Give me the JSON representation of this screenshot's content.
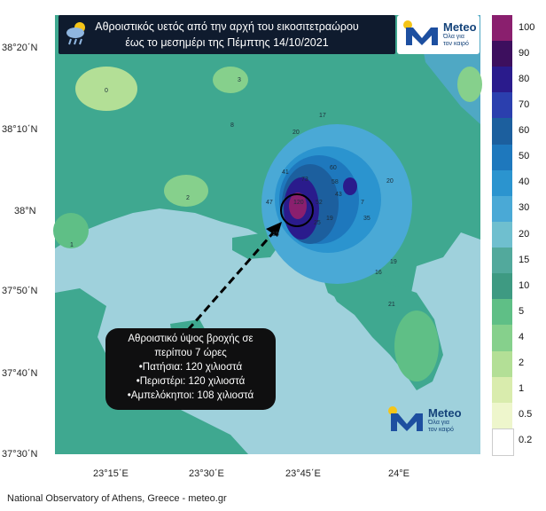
{
  "title": {
    "line1": "Αθροιστικός υετός από την αρχή του εικοσιτετραώρου",
    "line2": "έως το μεσημέρι της Πέμπτης 14/10/2021"
  },
  "logo": {
    "name": "Meteo",
    "tagline_line1": "Όλα για",
    "tagline_line2": "τον καιρό"
  },
  "legend": {
    "labels": [
      "100",
      "90",
      "80",
      "70",
      "60",
      "50",
      "40",
      "30",
      "20",
      "15",
      "10",
      "5",
      "4",
      "2",
      "1",
      "0.5",
      "0.2"
    ],
    "colors": [
      "#8a1f6e",
      "#3d0f5e",
      "#2a1b8c",
      "#2b3fae",
      "#1c5f9e",
      "#1e78bd",
      "#2b94cf",
      "#4aa9d6",
      "#6fbfcf",
      "#52a99c",
      "#3e9a82",
      "#5fbf86",
      "#86d08c",
      "#b3df96",
      "#d9ecad",
      "#eef6cc",
      "#ffffff"
    ]
  },
  "axes": {
    "lat_labels": [
      "38°20΄N",
      "38°10΄N",
      "38°N",
      "37°50΄N",
      "37°40΄N",
      "37°30΄N"
    ],
    "lon_labels": [
      "23°15΄E",
      "23°30΄E",
      "23°45΄E",
      "24°E"
    ]
  },
  "callout": {
    "line1": "Αθροιστικό ύψος βροχής σε",
    "line2": "περίπου 7 ώρες",
    "line3": "•Πατήσια: 120 χιλιοστά",
    "line4": "•Περιστέρι: 120 χιλιοστά",
    "line5": "•Αμπελόκηποι: 108 χιλιοστά"
  },
  "map_values": [
    "0",
    "3",
    "8",
    "17",
    "20",
    "41",
    "60",
    "73",
    "58",
    "47",
    "52",
    "43",
    "7",
    "20",
    "120",
    "25",
    "19",
    "35",
    "15",
    "2",
    "1",
    "16",
    "21",
    "19"
  ],
  "footer": "National Observatory of Athens, Greece - meteo.gr",
  "colors": {
    "sea": "#9fd1dc",
    "land_base": "#3fa890",
    "dark_box": "#0f1b2e",
    "accent_sun": "#f5c518",
    "brand_blue": "#14437a"
  }
}
